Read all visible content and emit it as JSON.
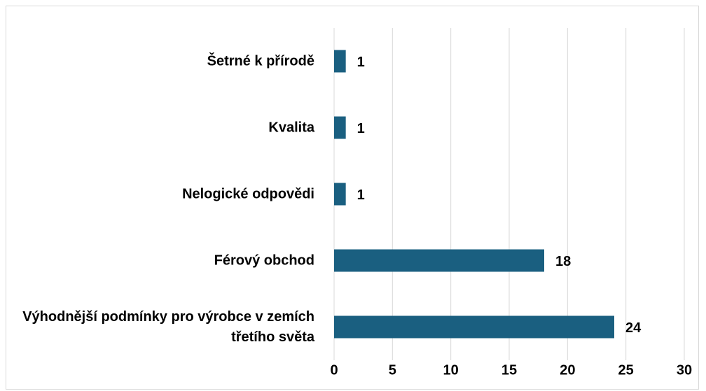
{
  "chart_data": {
    "type": "bar",
    "orientation": "horizontal",
    "categories": [
      "Šetrné k přírodě",
      "Kvalita",
      "Nelogické odpovědi",
      "Férový obchod",
      "Výhodnější podmínky pro výrobce v zemích třetího světa"
    ],
    "values": [
      1,
      1,
      1,
      18,
      24
    ],
    "color": "#1a5f80",
    "xlim": [
      0,
      30
    ],
    "xticks": [
      0,
      5,
      10,
      15,
      20,
      25,
      30
    ],
    "grid": true
  }
}
